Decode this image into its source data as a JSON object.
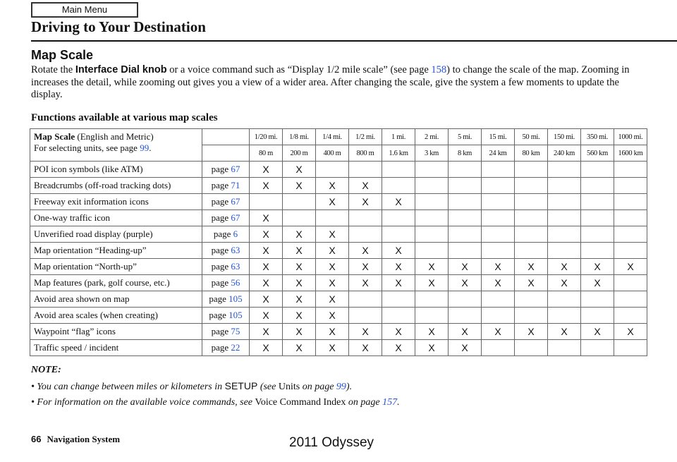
{
  "header": {
    "main_menu": "Main Menu",
    "title": "Driving to Your Destination"
  },
  "section": {
    "title": "Map Scale",
    "p1": "Rotate the ",
    "p_bold": "Interface Dial knob",
    "p2": " or a voice command such as “Display 1/2 mile scale” (see page ",
    "p_link": "158",
    "p3": ") to change the scale of the map. Zooming in increases the detail, while zooming out gives you a view of a wider area. After changing the scale, give the system a few moments to update the display."
  },
  "table": {
    "title": "Functions available at various map scales",
    "head_bold": "Map Scale",
    "head_rest": " (English and Metric)",
    "head_line2": "For selecting units, see page ",
    "head_link": "99",
    "english": [
      "1/20 mi.",
      "1/8 mi.",
      "1/4 mi.",
      "1/2 mi.",
      "1 mi.",
      "2 mi.",
      "5 mi.",
      "15 mi.",
      "50 mi.",
      "150 mi.",
      "350 mi.",
      "1000 mi."
    ],
    "metric": [
      "80 m",
      "200 m",
      "400 m",
      "800 m",
      "1.6 km",
      "3 km",
      "8 km",
      "24 km",
      "80 km",
      "240 km",
      "560 km",
      "1600 km"
    ],
    "page_prefix": "page ",
    "mark": "X",
    "rows": [
      {
        "label": "POI icon symbols (like ATM)",
        "page": "67",
        "marks": [
          0,
          1
        ]
      },
      {
        "label": "Breadcrumbs (off-road tracking dots)",
        "page": "71",
        "marks": [
          0,
          1,
          2,
          3
        ]
      },
      {
        "label": "Freeway exit information icons",
        "page": "67",
        "marks": [
          2,
          3,
          4
        ]
      },
      {
        "label": "One-way traffic icon",
        "page": "67",
        "marks": [
          0
        ]
      },
      {
        "label": "Unverified road display (purple)",
        "page": "6",
        "marks": [
          0,
          1,
          2
        ]
      },
      {
        "label": "Map orientation “Heading-up”",
        "page": "63",
        "marks": [
          0,
          1,
          2,
          3,
          4
        ]
      },
      {
        "label": "Map orientation “North-up”",
        "page": "63",
        "marks": [
          0,
          1,
          2,
          3,
          4,
          5,
          6,
          7,
          8,
          9,
          10,
          11
        ]
      },
      {
        "label": "Map features (park, golf course, etc.)",
        "page": "56",
        "marks": [
          0,
          1,
          2,
          3,
          4,
          5,
          6,
          7,
          8,
          9,
          10
        ]
      },
      {
        "label": "Avoid area shown on map",
        "page": "105",
        "marks": [
          0,
          1,
          2
        ]
      },
      {
        "label": "Avoid area scales (when creating)",
        "page": "105",
        "marks": [
          0,
          1,
          2
        ]
      },
      {
        "label": "Waypoint “flag” icons",
        "page": "75",
        "marks": [
          0,
          1,
          2,
          3,
          4,
          5,
          6,
          7,
          8,
          9,
          10,
          11
        ]
      },
      {
        "label": "Traffic speed / incident",
        "page": "22",
        "marks": [
          0,
          1,
          2,
          3,
          4,
          5,
          6
        ]
      }
    ]
  },
  "note": {
    "title": "NOTE:",
    "b1_a": "You can change between miles or kilometers in ",
    "b1_setup": "SETUP",
    "b1_b": " (see ",
    "b1_units": "Units",
    "b1_c": " on page ",
    "b1_link": "99",
    "b1_d": ").",
    "b2_a": "For information on the available voice commands, see ",
    "b2_vci": "Voice Command Index",
    "b2_b": " on page ",
    "b2_link": "157",
    "b2_c": "."
  },
  "footer": {
    "page_number": "66",
    "book": "Navigation System",
    "watermark": "2011 Odyssey"
  },
  "colors": {
    "link": "#2255dd"
  }
}
